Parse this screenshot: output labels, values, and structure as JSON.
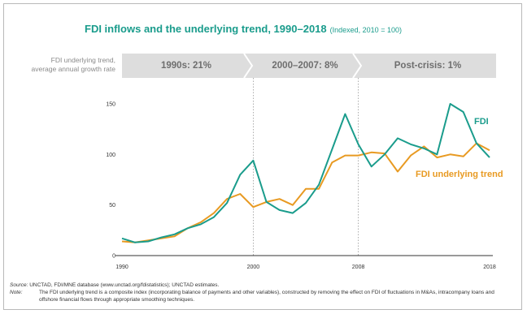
{
  "title": "FDI inflows and the underlying trend, 1990–2018",
  "subtitle": "(Indexed, 2010 = 100)",
  "trend_label": [
    "FDI underlying trend,",
    "average annual growth rate"
  ],
  "segments": [
    {
      "label": "1990s: 21%"
    },
    {
      "label": "2000–2007: 8%"
    },
    {
      "label": "Post-crisis: 1%"
    }
  ],
  "colors": {
    "fdi": "#1a9c8c",
    "trend": "#e89a22",
    "title": "#1a9c8c",
    "band": "#dddddd"
  },
  "source": {
    "key": "Source:",
    "text": "UNCTAD, FDI/MNE database (www.unctad.org/fdistatistics); UNCTAD estimates."
  },
  "note": {
    "key": "Note:",
    "text": "The FDI underlying trend is a composite index (incorporating balance of payments and other variables), constructed by removing the effect on FDI of fluctuations in M&As, intracompany loans and offshore financial flows through appropriate smoothing techniques."
  },
  "chart_data": {
    "type": "line",
    "x": [
      1990,
      1991,
      1992,
      1993,
      1994,
      1995,
      1996,
      1997,
      1998,
      1999,
      2000,
      2001,
      2002,
      2003,
      2004,
      2005,
      2006,
      2007,
      2008,
      2009,
      2010,
      2011,
      2012,
      2013,
      2014,
      2015,
      2016,
      2017,
      2018
    ],
    "series": [
      {
        "name": "FDI",
        "color": "#1a9c8c",
        "values": [
          17,
          13,
          14,
          18,
          21,
          27,
          31,
          38,
          52,
          80,
          94,
          53,
          45,
          42,
          52,
          70,
          105,
          140,
          110,
          88,
          100,
          116,
          110,
          106,
          100,
          150,
          142,
          111,
          97
        ]
      },
      {
        "name": "FDI underlying trend",
        "color": "#e89a22",
        "values": [
          14,
          13,
          15,
          17,
          19,
          27,
          33,
          42,
          56,
          61,
          48,
          53,
          56,
          50,
          66,
          66,
          92,
          99,
          99,
          102,
          101,
          83,
          99,
          108,
          97,
          100,
          98,
          111,
          104
        ]
      }
    ],
    "xticks": [
      "1990",
      "2000",
      "2008",
      "2018"
    ],
    "yticks": [
      "0",
      "50",
      "100",
      "150"
    ],
    "xlim": [
      1990,
      2018
    ],
    "ylim": [
      0,
      160
    ],
    "grid": false,
    "vlines": [
      2000,
      2008
    ]
  }
}
